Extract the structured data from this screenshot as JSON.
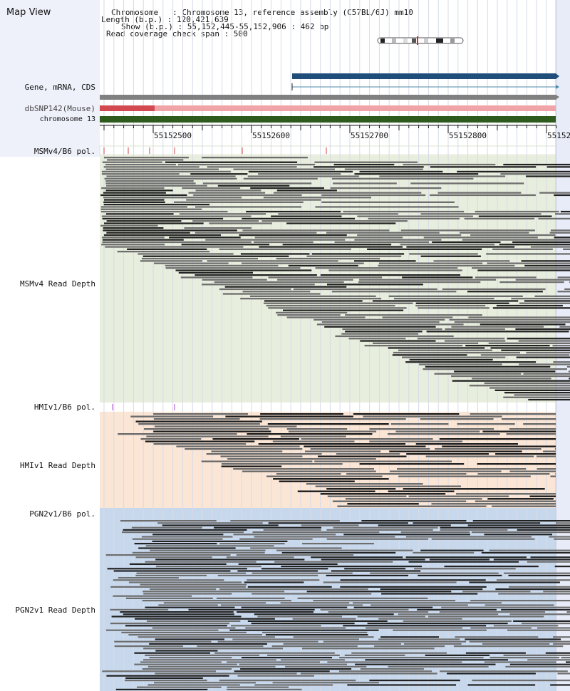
{
  "app": {
    "title": "Map View"
  },
  "header": {
    "chromosome_line": "Chromosome   : Chromosome 13, reference assembly (C57BL/6J) mm10",
    "length_line": "Length (b.p.) : 120,421,639",
    "show_line": "Show (b.p.) : 55,152,445-55,152,906 : 462 bp",
    "coverage_line": "Read coverage check span : 500"
  },
  "tracks": {
    "gene_label": "Gene, mRNA, CDS",
    "dbsnp_label": "dbSNP142(Mouse)",
    "chromosome_label": "chromosome 13",
    "msm_pol_label": "MSMv4/B6 pol.",
    "msm_depth_label": "MSMv4 Read Depth",
    "hmi_pol_label": "HMIv1/B6 pol.",
    "hmi_depth_label": "HMIv1 Read Depth",
    "pgn_pol_label": "PGN2v1/B6 pol.",
    "pgn_depth_label": "PGN2v1 Read Depth"
  },
  "ruler": {
    "ticks": [
      "55152500",
      "55152600",
      "55152700",
      "55152800",
      "55152"
    ]
  },
  "colors": {
    "gene_bar": "#1f4e7a",
    "msm_bg": "#e8eedd",
    "msm_bg_alt": "#f7e6da",
    "hmi_bg": "#fbe6d6",
    "pgn_bg": "#c8d8ec",
    "snp_strong": "#d24a50",
    "snp_light": "#f1a4a8",
    "chrom_bar": "#2f5a1d"
  }
}
